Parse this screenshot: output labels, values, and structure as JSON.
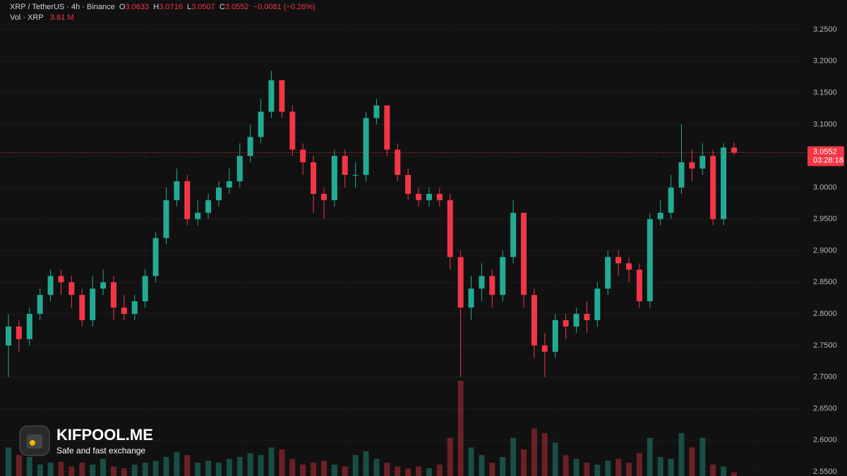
{
  "legend": {
    "symbol": "XRP / TetherUS · 4h · Binance",
    "ohlc": [
      {
        "key": "O",
        "value": "3.0633"
      },
      {
        "key": "H",
        "value": "3.0716"
      },
      {
        "key": "L",
        "value": "3.0507"
      },
      {
        "key": "C",
        "value": "3.0552"
      }
    ],
    "change": "−0.0081 (−0.26%)",
    "volume_title": "Vol · XRP",
    "volume": "3.81 M"
  },
  "watermark": {
    "title": "KIFPOOL.ME",
    "subtitle": "Safe and fast exchange"
  },
  "chart_data": {
    "type": "candlestick",
    "up_color": "#22ab94",
    "down_color": "#f23645",
    "ylim": [
      2.5433,
      3.2969
    ],
    "yticks": [
      {
        "value": 2.55,
        "label": "2.5500"
      },
      {
        "value": 2.6,
        "label": "2.6000"
      },
      {
        "value": 2.65,
        "label": "2.6500"
      },
      {
        "value": 2.7,
        "label": "2.7000"
      },
      {
        "value": 2.75,
        "label": "2.7500"
      },
      {
        "value": 2.8,
        "label": "2.8000"
      },
      {
        "value": 2.85,
        "label": "2.8500"
      },
      {
        "value": 2.9,
        "label": "2.9000"
      },
      {
        "value": 2.95,
        "label": "2.9500"
      },
      {
        "value": 3.0,
        "label": "3.0000"
      },
      {
        "value": 3.05,
        "label": "3.0500"
      },
      {
        "value": 3.1,
        "label": "3.1000"
      },
      {
        "value": 3.15,
        "label": "3.1500"
      },
      {
        "value": 3.2,
        "label": "3.2000"
      },
      {
        "value": 3.25,
        "label": "3.2500"
      }
    ],
    "grid": true,
    "volume_lim": [
      0,
      100
    ],
    "last_price": 3.0552,
    "countdown": "03:28:18",
    "open": [
      2.75,
      2.78,
      2.76,
      2.8,
      2.83,
      2.86,
      2.85,
      2.83,
      2.79,
      2.84,
      2.85,
      2.81,
      2.8,
      2.82,
      2.86,
      2.92,
      2.98,
      3.01,
      2.95,
      2.96,
      2.98,
      3.0,
      3.01,
      3.05,
      3.08,
      3.12,
      3.17,
      3.12,
      3.06,
      3.04,
      2.99,
      2.98,
      3.05,
      3.02,
      3.02,
      3.11,
      3.13,
      3.06,
      3.02,
      2.99,
      2.98,
      2.99,
      2.98,
      2.89,
      2.81,
      2.84,
      2.86,
      2.83,
      2.89,
      2.96,
      2.83,
      2.75,
      2.74,
      2.79,
      2.78,
      2.8,
      2.79,
      2.84,
      2.89,
      2.88,
      2.87,
      2.82,
      2.95,
      2.96,
      3.0,
      3.04,
      3.03,
      3.05,
      2.95,
      3.0633
    ],
    "high": [
      2.8,
      2.79,
      2.81,
      2.84,
      2.87,
      2.87,
      2.86,
      2.84,
      2.86,
      2.87,
      2.86,
      2.83,
      2.83,
      2.87,
      2.93,
      3.0,
      3.03,
      3.02,
      2.98,
      2.99,
      3.01,
      3.03,
      3.07,
      3.1,
      3.14,
      3.185,
      3.17,
      3.13,
      3.07,
      3.05,
      3.0,
      3.06,
      3.06,
      3.04,
      3.12,
      3.14,
      3.13,
      3.07,
      3.03,
      3.0,
      3.0,
      3.0,
      2.99,
      2.9,
      2.86,
      2.88,
      2.87,
      2.9,
      2.98,
      2.96,
      2.84,
      2.77,
      2.8,
      2.8,
      2.81,
      2.82,
      2.85,
      2.9,
      2.9,
      2.89,
      2.88,
      2.96,
      2.98,
      3.02,
      3.1,
      3.06,
      3.07,
      3.06,
      3.07,
      3.0716
    ],
    "low": [
      2.7,
      2.74,
      2.75,
      2.79,
      2.82,
      2.83,
      2.81,
      2.78,
      2.78,
      2.83,
      2.79,
      2.79,
      2.79,
      2.81,
      2.85,
      2.91,
      2.97,
      2.94,
      2.94,
      2.95,
      2.97,
      2.99,
      3.0,
      3.04,
      3.07,
      3.11,
      3.11,
      3.05,
      3.02,
      2.96,
      2.95,
      2.97,
      3.0,
      3.0,
      3.01,
      3.1,
      3.05,
      3.01,
      2.98,
      2.97,
      2.97,
      2.97,
      2.87,
      2.7,
      2.79,
      2.82,
      2.81,
      2.82,
      2.88,
      2.81,
      2.73,
      2.7,
      2.73,
      2.76,
      2.77,
      2.77,
      2.78,
      2.83,
      2.86,
      2.85,
      2.81,
      2.81,
      2.94,
      2.95,
      2.99,
      3.01,
      3.02,
      2.94,
      2.94,
      3.0507
    ],
    "close": [
      2.78,
      2.76,
      2.8,
      2.83,
      2.86,
      2.85,
      2.83,
      2.79,
      2.84,
      2.85,
      2.81,
      2.8,
      2.82,
      2.86,
      2.92,
      2.98,
      3.01,
      2.95,
      2.96,
      2.98,
      3.0,
      3.01,
      3.05,
      3.08,
      3.12,
      3.17,
      3.12,
      3.06,
      3.04,
      2.99,
      2.98,
      3.05,
      3.02,
      3.02,
      3.11,
      3.13,
      3.06,
      3.02,
      2.99,
      2.98,
      2.99,
      2.98,
      2.89,
      2.81,
      2.84,
      2.86,
      2.83,
      2.89,
      2.96,
      2.83,
      2.75,
      2.74,
      2.79,
      2.78,
      2.8,
      2.79,
      2.84,
      2.89,
      2.88,
      2.87,
      2.82,
      2.95,
      2.96,
      3.0,
      3.04,
      3.03,
      3.05,
      2.95,
      3.0633,
      3.0552
    ],
    "volumes": [
      30,
      22,
      20,
      12,
      14,
      15,
      10,
      14,
      12,
      18,
      10,
      8,
      12,
      14,
      16,
      20,
      25,
      22,
      14,
      16,
      14,
      18,
      20,
      24,
      22,
      30,
      28,
      18,
      12,
      14,
      16,
      12,
      10,
      22,
      26,
      18,
      14,
      10,
      8,
      10,
      8,
      12,
      40,
      100,
      30,
      22,
      14,
      20,
      40,
      28,
      50,
      45,
      35,
      22,
      18,
      14,
      12,
      16,
      18,
      14,
      24,
      40,
      20,
      18,
      45,
      30,
      40,
      12,
      10,
      3.81
    ]
  }
}
